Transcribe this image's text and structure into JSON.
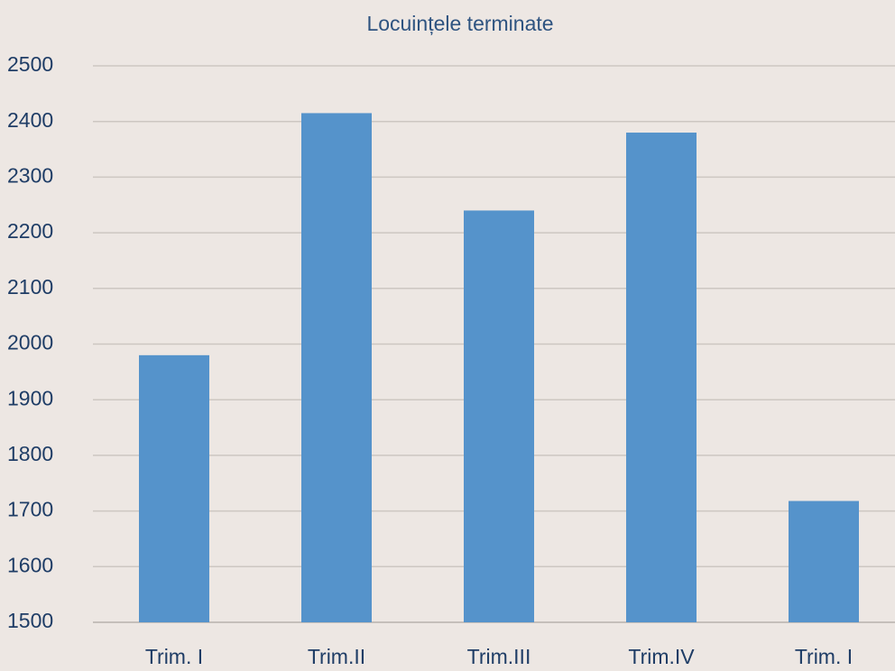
{
  "chart_data": {
    "type": "bar",
    "title": "Locuințele terminate",
    "categories": [
      "Trim. I",
      "Trim.II",
      "Trim.III",
      "Trim.IV",
      "Trim. I"
    ],
    "values": [
      1980,
      2415,
      2240,
      2380,
      1718
    ],
    "color": "#5593cb",
    "ylim": [
      1500,
      2500
    ],
    "yticks": [
      1500,
      1600,
      1700,
      1800,
      1900,
      2000,
      2100,
      2200,
      2300,
      2400,
      2500
    ],
    "grid": true
  }
}
